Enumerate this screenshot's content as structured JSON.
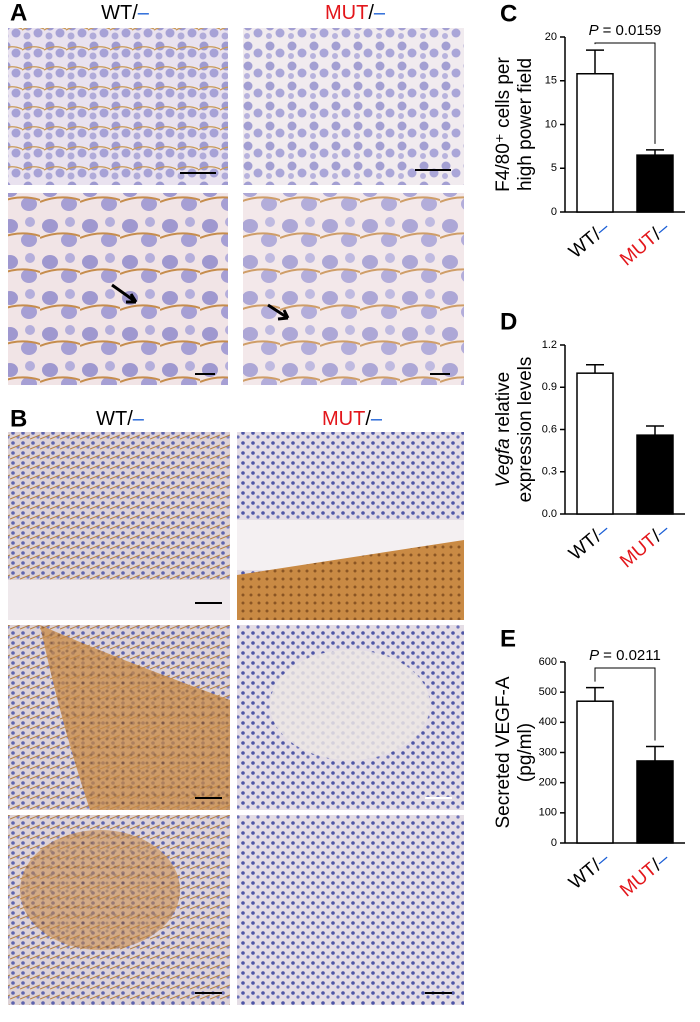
{
  "panels": {
    "A": {
      "label": "A",
      "left": "WT/–",
      "right": "MUT/–"
    },
    "B": {
      "label": "B",
      "left": "WT/–",
      "right": "MUT/–"
    }
  },
  "label_colors": {
    "WT": "#000000",
    "MUT": "#e3161b",
    "dash": "#1b5fd6"
  },
  "chart_data": [
    {
      "type": "bar",
      "panel": "C",
      "ylabel": [
        "F4/80⁺ cells per",
        "high power field"
      ],
      "categories": [
        "WT/–",
        "MUT/–"
      ],
      "series": [
        {
          "values": [
            15.8,
            6.5
          ],
          "errors": [
            2.7,
            0.6
          ],
          "colors": [
            "#ffffff",
            "#000000"
          ]
        }
      ],
      "ylim": [
        0,
        20
      ],
      "yticks": [
        0,
        5,
        10,
        15,
        20
      ],
      "annotation_symbol": "P",
      "annotation": "= 0.0159"
    },
    {
      "type": "bar",
      "panel": "D",
      "ylabel_italic": "Vegfa",
      "ylabel": [
        "relative",
        "expression levels"
      ],
      "categories": [
        "WT/–",
        "MUT/–"
      ],
      "series": [
        {
          "values": [
            1.0,
            0.56
          ],
          "errors": [
            0.06,
            0.065
          ],
          "colors": [
            "#ffffff",
            "#000000"
          ]
        }
      ],
      "ylim": [
        0,
        1.2
      ],
      "yticks": [
        {
          "value": 0,
          "label": "0.0"
        },
        0.3,
        0.6,
        0.9,
        1.2
      ]
    },
    {
      "type": "bar",
      "panel": "E",
      "ylabel": [
        "Secreted VEGF-A",
        "(pg/ml)"
      ],
      "categories": [
        "WT/–",
        "MUT/–"
      ],
      "series": [
        {
          "values": [
            470,
            272
          ],
          "errors": [
            45,
            48
          ],
          "colors": [
            "#ffffff",
            "#000000"
          ]
        }
      ],
      "ylim": [
        0,
        600
      ],
      "yticks": [
        0,
        100,
        200,
        300,
        400,
        500,
        600
      ],
      "annotation_symbol": "P",
      "annotation": "= 0.0211"
    }
  ]
}
